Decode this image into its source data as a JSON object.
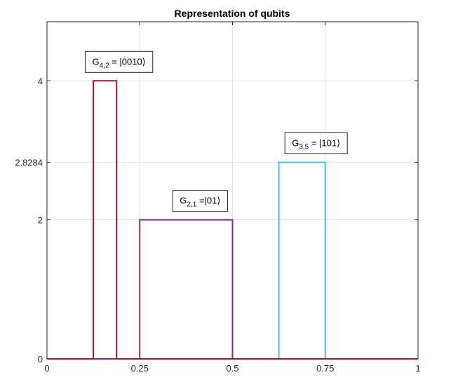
{
  "chart_data": {
    "type": "line",
    "title": "Representation of qubits",
    "xlabel": "",
    "ylabel": "",
    "xlim": [
      0,
      1
    ],
    "ylim": [
      0,
      4.85
    ],
    "grid": true,
    "x_ticks": [
      {
        "value": 0,
        "label": "0"
      },
      {
        "value": 0.25,
        "label": "0.25"
      },
      {
        "value": 0.5,
        "label": "0.5"
      },
      {
        "value": 0.75,
        "label": "0.75"
      },
      {
        "value": 1,
        "label": "1"
      }
    ],
    "y_ticks": [
      {
        "value": 0,
        "label": "0"
      },
      {
        "value": 2,
        "label": "2"
      },
      {
        "value": 2.8284,
        "label": "2.8284"
      },
      {
        "value": 4,
        "label": "4"
      }
    ],
    "series": [
      {
        "color": "#4DBEEE",
        "x": [
          0,
          0.625,
          0.625,
          0.75,
          0.75,
          1
        ],
        "y": [
          0,
          0,
          2.8284,
          2.8284,
          0,
          0
        ]
      },
      {
        "color": "#7E2F8E",
        "x": [
          0,
          0.25,
          0.25,
          0.5,
          0.5,
          1
        ],
        "y": [
          0,
          0,
          2,
          2,
          0,
          0
        ]
      },
      {
        "color": "#A2142F",
        "x": [
          0,
          0.125,
          0.125,
          0.1875,
          0.1875,
          1
        ],
        "y": [
          0,
          0,
          4,
          4,
          0,
          0
        ]
      }
    ],
    "annotations": [
      {
        "base": "G",
        "sub": "4,2",
        "ket": " = |0010⟩",
        "x": 0.15625,
        "y": 4,
        "anchor": "x"
      },
      {
        "base": "G",
        "sub": "2,1",
        "ket": " =|01⟩",
        "x": 0.375,
        "y": 2,
        "anchor": "x"
      },
      {
        "base": "G",
        "sub": "3,5",
        "ket": " = |101⟩",
        "x": 0.6875,
        "y": 2.8284,
        "anchor": "x"
      }
    ]
  }
}
